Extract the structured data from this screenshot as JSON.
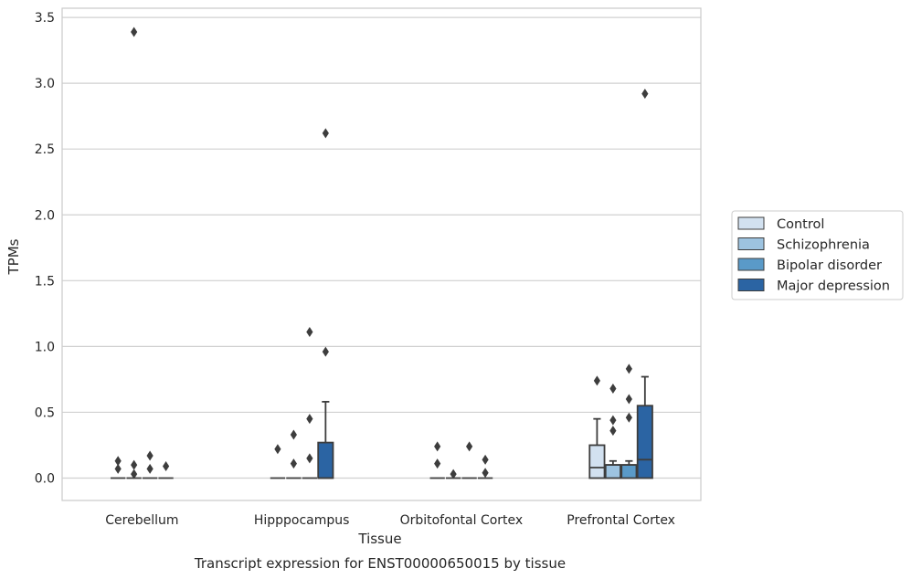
{
  "chart_data": {
    "type": "box",
    "caption": "Transcript expression for ENST00000650015 by tissue",
    "xlabel": "Tissue",
    "ylabel": "TPMs",
    "ylim": [
      -0.17,
      3.57
    ],
    "yticks": [
      0.0,
      0.5,
      1.0,
      1.5,
      2.0,
      2.5,
      3.0,
      3.5
    ],
    "ytick_labels": [
      "0.0",
      "0.5",
      "1.0",
      "1.5",
      "2.0",
      "2.5",
      "3.0",
      "3.5"
    ],
    "grid": "horizontal",
    "legend_position": "right",
    "categories": [
      "Cerebellum",
      "Hipppocampus",
      "Orbitofontal Cortex",
      "Prefrontal Cortex"
    ],
    "series": [
      {
        "name": "Control",
        "color": "#d2e1f0",
        "boxes": [
          {
            "q1": 0,
            "median": 0,
            "q3": 0,
            "whisker_low": 0,
            "whisker_high": 0,
            "outliers": [
              0.07,
              0.13
            ]
          },
          {
            "q1": 0,
            "median": 0,
            "q3": 0,
            "whisker_low": 0,
            "whisker_high": 0,
            "outliers": [
              0.22
            ]
          },
          {
            "q1": 0,
            "median": 0,
            "q3": 0,
            "whisker_low": 0,
            "whisker_high": 0,
            "outliers": [
              0.11,
              0.24
            ]
          },
          {
            "q1": 0,
            "median": 0.08,
            "q3": 0.25,
            "whisker_low": 0,
            "whisker_high": 0.45,
            "outliers": [
              0.74
            ]
          }
        ]
      },
      {
        "name": "Schizophrenia",
        "color": "#9dc3e0",
        "boxes": [
          {
            "q1": 0,
            "median": 0,
            "q3": 0,
            "whisker_low": 0,
            "whisker_high": 0,
            "outliers": [
              0.03,
              0.1,
              3.39
            ]
          },
          {
            "q1": 0,
            "median": 0,
            "q3": 0,
            "whisker_low": 0,
            "whisker_high": 0,
            "outliers": [
              0.11,
              0.33
            ]
          },
          {
            "q1": 0,
            "median": 0,
            "q3": 0,
            "whisker_low": 0,
            "whisker_high": 0,
            "outliers": [
              0.03
            ]
          },
          {
            "q1": 0,
            "median": 0.1,
            "q3": 0.1,
            "whisker_low": 0,
            "whisker_high": 0.13,
            "outliers": [
              0.36,
              0.44,
              0.68
            ]
          }
        ]
      },
      {
        "name": "Bipolar disorder",
        "color": "#5a9ac8",
        "boxes": [
          {
            "q1": 0,
            "median": 0,
            "q3": 0,
            "whisker_low": 0,
            "whisker_high": 0,
            "outliers": [
              0.07,
              0.17
            ]
          },
          {
            "q1": 0,
            "median": 0,
            "q3": 0,
            "whisker_low": 0,
            "whisker_high": 0,
            "outliers": [
              0.15,
              0.45,
              1.11
            ]
          },
          {
            "q1": 0,
            "median": 0,
            "q3": 0,
            "whisker_low": 0,
            "whisker_high": 0,
            "outliers": [
              0.24
            ]
          },
          {
            "q1": 0,
            "median": 0.1,
            "q3": 0.1,
            "whisker_low": 0,
            "whisker_high": 0.13,
            "outliers": [
              0.46,
              0.6,
              0.83
            ]
          }
        ]
      },
      {
        "name": "Major depression",
        "color": "#2b64a3",
        "boxes": [
          {
            "q1": 0,
            "median": 0,
            "q3": 0,
            "whisker_low": 0,
            "whisker_high": 0,
            "outliers": [
              0.09
            ]
          },
          {
            "q1": 0,
            "median": 0,
            "q3": 0.27,
            "whisker_low": 0,
            "whisker_high": 0.58,
            "outliers": [
              0.96,
              2.62
            ]
          },
          {
            "q1": 0,
            "median": 0,
            "q3": 0,
            "whisker_low": 0,
            "whisker_high": 0,
            "outliers": [
              0.04,
              0.14
            ]
          },
          {
            "q1": 0,
            "median": 0.14,
            "q3": 0.55,
            "whisker_low": 0,
            "whisker_high": 0.77,
            "outliers": [
              2.92
            ]
          }
        ]
      }
    ]
  }
}
